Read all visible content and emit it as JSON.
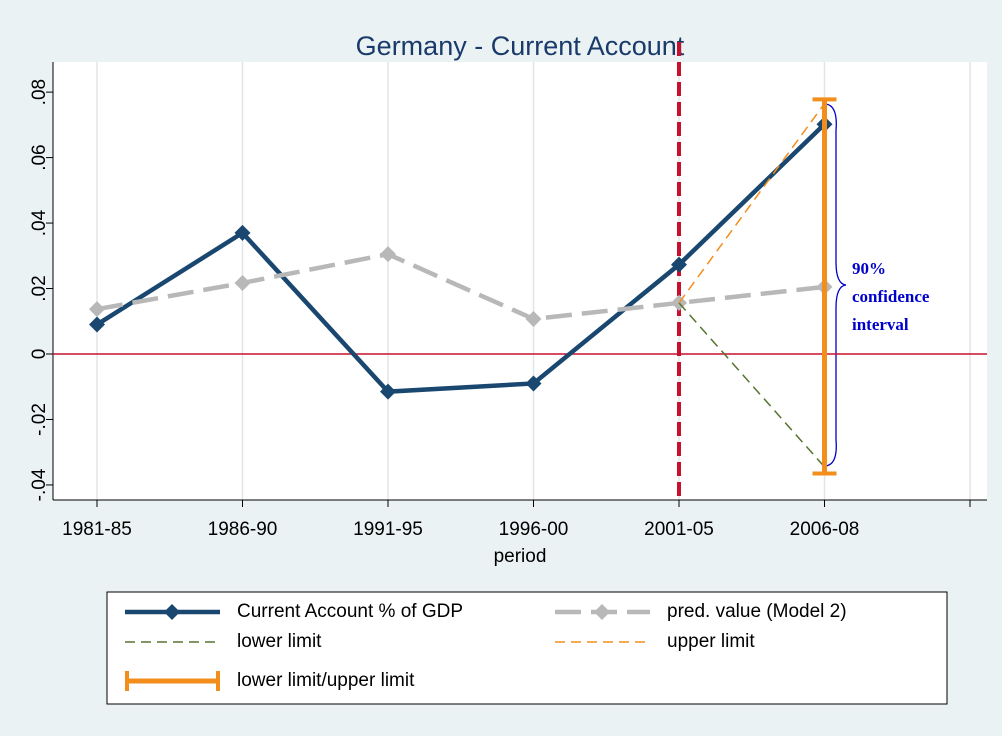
{
  "chart_data": {
    "type": "line",
    "title": "Germany - Current Account",
    "x_label": "period",
    "categories": [
      "1981-85",
      "1986-90",
      "1991-95",
      "1996-00",
      "2001-05",
      "2006-08",
      null
    ],
    "series": [
      {
        "name": "Current Account % of GDP",
        "color": "#1a476f",
        "style": "solid",
        "marker": "diamond",
        "values": [
          0.009,
          0.037,
          -0.0115,
          -0.009,
          0.0273,
          0.0702,
          null
        ]
      },
      {
        "name": "pred. value (Model 2)",
        "color": "#b8b8b8",
        "style": "longdash",
        "marker": "diamond",
        "values": [
          0.0137,
          0.0217,
          0.0305,
          0.0107,
          0.0156,
          0.0205,
          null
        ]
      },
      {
        "name": "lower limit",
        "color": "#55752f",
        "style": "dash",
        "values": [
          null,
          null,
          null,
          null,
          0.0156,
          -0.0345,
          null
        ]
      },
      {
        "name": "upper limit",
        "color": "#f28e1c",
        "style": "dash",
        "values": [
          null,
          null,
          null,
          null,
          0.0156,
          0.0765,
          null
        ]
      },
      {
        "name": "lower limit/upper limit",
        "color": "#f28e1c",
        "style": "rcap",
        "low": [
          null,
          null,
          null,
          null,
          null,
          -0.0365,
          null
        ],
        "high": [
          null,
          null,
          null,
          null,
          null,
          0.0778,
          null
        ]
      }
    ],
    "ylim": [
      -0.0446,
      0.0892
    ],
    "yticks": [
      {
        "value": -0.04,
        "label": "-.04"
      },
      {
        "value": -0.02,
        "label": "-.02"
      },
      0,
      {
        "value": 0.02,
        "label": ".02"
      },
      {
        "value": 0.04,
        "label": ".04"
      },
      {
        "value": 0.06,
        "label": ".06"
      },
      {
        "value": 0.08,
        "label": ".08"
      }
    ],
    "grid": "x",
    "yline": 0,
    "yline_color": "#c8102e",
    "xline": 4,
    "xline_color": "#c8102e",
    "annotation": [
      "90%",
      "confidence",
      "interval"
    ],
    "annotation_color": "#0000cc",
    "legend": "bottom"
  }
}
